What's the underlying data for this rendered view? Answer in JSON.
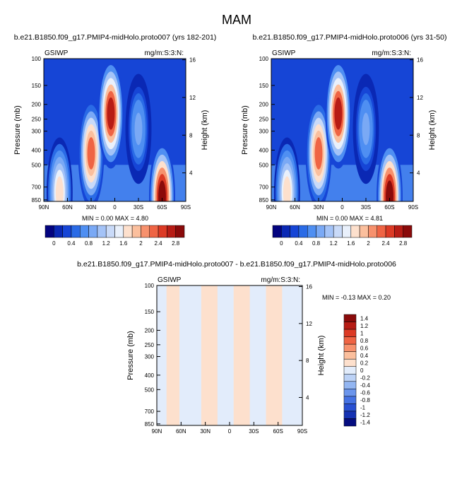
{
  "page_title": "MAM",
  "chart_data": [
    {
      "type": "heatmap",
      "title": "b.e21.B1850.f09_g17.PMIP4-midHolo.proto007 (yrs 182-201)",
      "left_label": "GSIWP",
      "right_label": "mg/m:S:3:N:",
      "ylabel": "Pressure (mb)",
      "ylabel_right": "Height (km)",
      "x_ticks": [
        "90N",
        "60N",
        "30N",
        "0",
        "30S",
        "60S",
        "90S"
      ],
      "y_ticks": [
        "100",
        "150",
        "200",
        "250",
        "300",
        "400",
        "500",
        "700",
        "850"
      ],
      "y2_ticks": [
        "16",
        "12",
        "8",
        "4"
      ],
      "stats": "MIN =  0.00  MAX =  4.80",
      "colorbar_labels": [
        "0",
        "0.4",
        "0.8",
        "1.2",
        "1.6",
        "2",
        "2.4",
        "2.8"
      ],
      "blobs": [
        {
          "lat": 30,
          "p": 420,
          "value": 2.4
        },
        {
          "lat": 5,
          "p": 230,
          "value": 2.8
        },
        {
          "lat": -60,
          "p": 810,
          "value": 3.0
        },
        {
          "lat": 70,
          "p": 760,
          "value": 1.8
        },
        {
          "lat": -30,
          "p": 290,
          "value": 1.0
        }
      ]
    },
    {
      "type": "heatmap",
      "title": "b.e21.B1850.f09_g17.PMIP4-midHolo.proto006 (yrs 31-50)",
      "left_label": "GSIWP",
      "right_label": "mg/m:S:3:N:",
      "ylabel": "Pressure (mb)",
      "ylabel_right": "Height (km)",
      "x_ticks": [
        "90N",
        "60N",
        "30N",
        "0",
        "30S",
        "60S",
        "90S"
      ],
      "y_ticks": [
        "100",
        "150",
        "200",
        "250",
        "300",
        "400",
        "500",
        "700",
        "850"
      ],
      "y2_ticks": [
        "16",
        "12",
        "8",
        "4"
      ],
      "stats": "MIN =  0.00  MAX =  4.81",
      "colorbar_labels": [
        "0",
        "0.4",
        "0.8",
        "1.2",
        "1.6",
        "2",
        "2.4",
        "2.8"
      ],
      "blobs": [
        {
          "lat": 30,
          "p": 420,
          "value": 2.4
        },
        {
          "lat": 5,
          "p": 230,
          "value": 2.8
        },
        {
          "lat": -60,
          "p": 810,
          "value": 3.0
        },
        {
          "lat": 70,
          "p": 760,
          "value": 1.8
        },
        {
          "lat": -30,
          "p": 290,
          "value": 1.0
        }
      ]
    },
    {
      "type": "heatmap",
      "title": "b.e21.B1850.f09_g17.PMIP4-midHolo.proto007 - b.e21.B1850.f09_g17.PMIP4-midHolo.proto006",
      "left_label": "GSIWP",
      "right_label": "mg/m:S:3:N:",
      "ylabel": "Pressure (mb)",
      "ylabel_right": "Height (km)",
      "x_ticks": [
        "90N",
        "60N",
        "30N",
        "0",
        "30S",
        "60S",
        "90S"
      ],
      "y_ticks": [
        "100",
        "150",
        "200",
        "250",
        "300",
        "400",
        "500",
        "700",
        "850"
      ],
      "y2_ticks": [
        "16",
        "12",
        "8",
        "4"
      ],
      "stats": "MIN = -0.13  MAX =  0.20",
      "colorbar_labels": [
        "1.4",
        "1.2",
        "1",
        "0.8",
        "0.6",
        "0.4",
        "0.2",
        "0",
        "-0.2",
        "-0.4",
        "-0.6",
        "-0.8",
        "-1",
        "-1.2",
        "-1.4"
      ],
      "bands": [
        {
          "from_lat": 78,
          "to_lat": 62,
          "sign": "positive"
        },
        {
          "from_lat": 35,
          "to_lat": 15,
          "sign": "positive"
        },
        {
          "from_lat": -5,
          "to_lat": -25,
          "sign": "positive"
        },
        {
          "from_lat": -45,
          "to_lat": -65,
          "sign": "positive"
        }
      ]
    }
  ],
  "colors": {
    "seq": [
      "#03037f",
      "#0a28b4",
      "#1645d6",
      "#2a6be6",
      "#4f8ff2",
      "#7aa9f5",
      "#a4c3f7",
      "#c9daf8",
      "#e9f0fb",
      "#fde0cd",
      "#fbbf9d",
      "#f7916d",
      "#ef6444",
      "#dc3a25",
      "#b71c15",
      "#8a0a0a"
    ],
    "diverging": [
      "#8a0a0a",
      "#b71c15",
      "#dc3a25",
      "#ef6444",
      "#f7916d",
      "#fbbf9d",
      "#fde0cd",
      "#e2ecfb",
      "#bcd2f6",
      "#93b6f2",
      "#6b95ec",
      "#4572e3",
      "#2850d2",
      "#1532b3",
      "#050d80"
    ]
  }
}
